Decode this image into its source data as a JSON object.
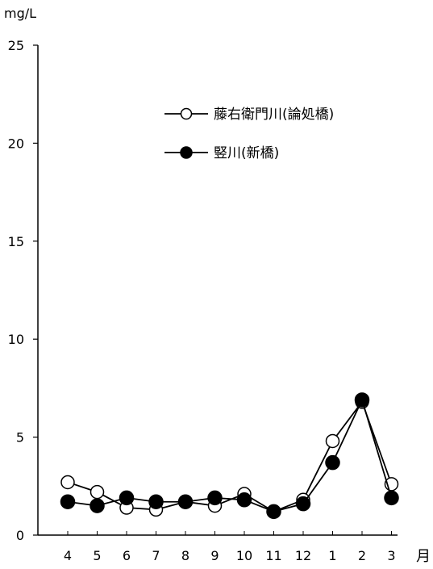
{
  "chart_data": {
    "type": "line",
    "y_unit": "mg/L",
    "x_unit": "月",
    "categories": [
      "4",
      "5",
      "6",
      "7",
      "8",
      "9",
      "10",
      "11",
      "12",
      "1",
      "2",
      "3"
    ],
    "ylim": [
      0,
      25
    ],
    "yticks": [
      "0",
      "5",
      "10",
      "15",
      "20",
      "25"
    ],
    "grid": false,
    "legend_position": "upper-right",
    "series": [
      {
        "name": "藤右衛門川(論処橋)",
        "marker": "open-circle",
        "values": [
          2.7,
          2.2,
          1.4,
          1.3,
          1.7,
          1.5,
          2.1,
          1.2,
          1.8,
          4.8,
          6.8,
          2.6
        ]
      },
      {
        "name": "竪川(新橋)",
        "marker": "filled-circle",
        "values": [
          1.7,
          1.5,
          1.9,
          1.7,
          1.7,
          1.9,
          1.8,
          1.2,
          1.6,
          3.7,
          6.9,
          1.9
        ]
      }
    ]
  }
}
